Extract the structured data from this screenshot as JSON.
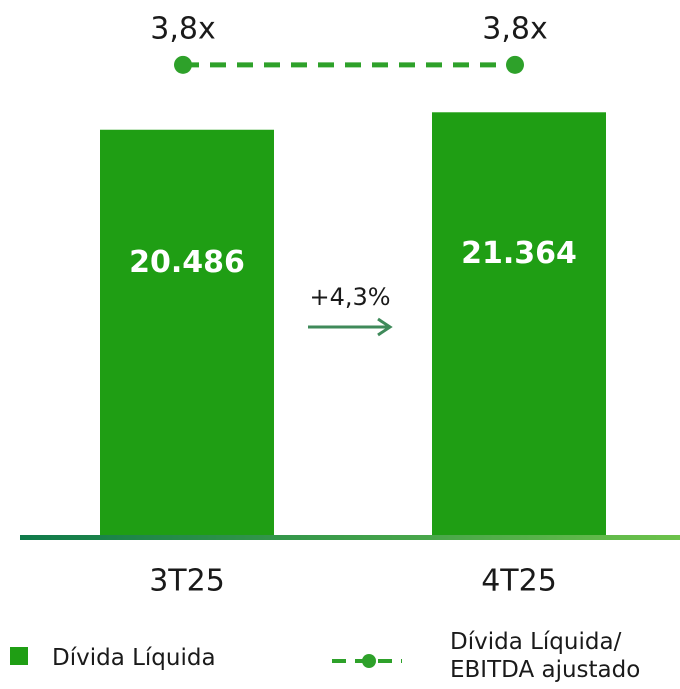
{
  "chart_data": {
    "type": "bar",
    "categories": [
      "3T25",
      "4T25"
    ],
    "ylim": [
      0,
      25000
    ],
    "y2lim": [
      0,
      4
    ],
    "series": [
      {
        "name": "Dívida Líquida",
        "type": "bar",
        "color": "#1f9e14",
        "values": [
          20486,
          21364
        ],
        "value_labels": [
          "20.486",
          "21.364"
        ]
      },
      {
        "name": "Dívida Líquida/ EBITDA ajustado",
        "type": "line",
        "axis": "y2",
        "color": "#2ea12a",
        "dashed": true,
        "values": [
          3.8,
          3.8
        ],
        "value_labels": [
          "3,8x",
          "3,8x"
        ]
      }
    ],
    "annotations": [
      {
        "text": "+4,3%"
      }
    ]
  }
}
